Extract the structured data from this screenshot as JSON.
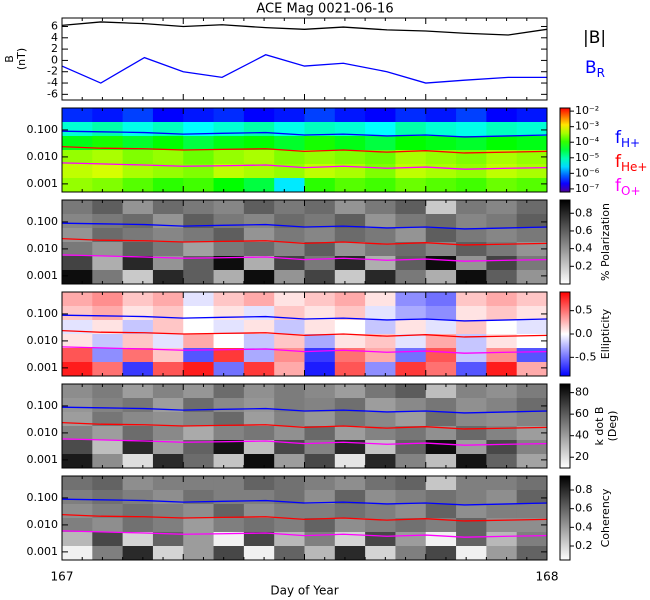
{
  "chart_data": [
    {
      "type": "line",
      "title": "ACE Mag 0021-06-16",
      "ylabel": "B",
      "ylabel_unit": "(nT)",
      "xlim": [
        167,
        168
      ],
      "ylim": [
        -7,
        7.5
      ],
      "yticks": [
        6,
        4,
        2,
        0,
        -2,
        -4,
        -6
      ],
      "x": [
        167,
        167.08,
        167.17,
        167.25,
        167.33,
        167.42,
        167.5,
        167.58,
        167.67,
        167.75,
        167.83,
        167.92,
        168
      ],
      "series": [
        {
          "name": "|B|",
          "color": "#000000",
          "values": [
            6.2,
            6.8,
            6.5,
            6.0,
            6.3,
            5.8,
            5.5,
            5.9,
            5.4,
            5.2,
            4.8,
            4.5,
            5.5
          ]
        },
        {
          "name": "B",
          "name_sub": "R",
          "color": "#0000ff",
          "values": [
            -1,
            -4,
            0.5,
            -2,
            -3,
            1,
            -1,
            -0.5,
            -2,
            -4,
            -3.5,
            -3,
            -3
          ]
        }
      ]
    },
    {
      "type": "spectrogram",
      "colormap": "rainbow",
      "ylog": true,
      "xlim": [
        167,
        168
      ],
      "ylim": [
        0.0005,
        0.65
      ],
      "yticks": [
        0.001,
        {
          "value": 0.01,
          "label": "0.010"
        },
        {
          "value": 0.1,
          "label": "0.100"
        }
      ],
      "clim": [
        -7.2,
        -1.8
      ],
      "cticks": [
        {
          "value": -2,
          "label": "10⁻²"
        },
        {
          "value": -3,
          "label": "10⁻³"
        },
        {
          "value": -4,
          "label": "10⁻⁴"
        },
        {
          "value": -5,
          "label": "10⁻⁵"
        },
        {
          "value": -6,
          "label": "10⁻⁶"
        },
        {
          "value": -7,
          "label": "10⁻⁷"
        }
      ],
      "z": [
        [
          -6.4,
          -6.5,
          -6.3,
          -6.6,
          -6.5,
          -6.4,
          -6.6,
          -6.5,
          -6.3,
          -6.5,
          -6.6,
          -6.4,
          -6.5,
          -6.3,
          -6.6,
          -6.5
        ],
        [
          -5.2,
          -5.0,
          -5.3,
          -5.1,
          -5.4,
          -5.2,
          -5.0,
          -5.3,
          -5.1,
          -5.2,
          -5.4,
          -5.0,
          -5.2,
          -5.3,
          -5.1,
          -5.2
        ],
        [
          -4.3,
          -4.1,
          -4.4,
          -4.2,
          -4.5,
          -4.3,
          -4.2,
          -4.4,
          -4.1,
          -4.3,
          -4.5,
          -4.2,
          -4.3,
          -4.4,
          -4.2,
          -4.3
        ],
        [
          -3.5,
          -3.4,
          -3.6,
          -3.5,
          -3.7,
          -3.5,
          -3.4,
          -3.6,
          -3.5,
          -3.6,
          -3.7,
          -3.4,
          -3.5,
          -3.6,
          -3.4,
          -3.5
        ],
        [
          -3.3,
          -3.2,
          -3.4,
          -3.5,
          -3.6,
          -3.3,
          -3.4,
          -3.5,
          -3.3,
          -3.4,
          -3.6,
          -3.3,
          -3.4,
          -3.5,
          -3.3,
          -3.4
        ],
        [
          -3.5,
          -3.6,
          -3.8,
          -4.0,
          -3.9,
          -4.2,
          -4.5,
          -5.5,
          -4.0,
          -3.8,
          -3.9,
          -3.7,
          -3.8,
          -3.9,
          -3.7,
          -3.8
        ]
      ],
      "x": [
        167,
        167.08,
        167.17,
        167.25,
        167.33,
        167.42,
        167.5,
        167.58,
        167.67,
        167.75,
        167.83,
        167.92,
        168
      ],
      "series": [
        {
          "name": "f",
          "name_sub": "H+",
          "color": "#0000ff",
          "values": [
            0.09,
            0.085,
            0.08,
            0.07,
            0.075,
            0.08,
            0.065,
            0.07,
            0.06,
            0.065,
            0.055,
            0.06,
            0.065
          ]
        },
        {
          "name": "f",
          "name_sub": "He+",
          "color": "#ff0000",
          "values": [
            0.024,
            0.021,
            0.02,
            0.018,
            0.019,
            0.02,
            0.016,
            0.018,
            0.015,
            0.017,
            0.014,
            0.015,
            0.016
          ]
        },
        {
          "name": "f",
          "name_sub": "O+",
          "color": "#ff00ff",
          "values": [
            0.006,
            0.0055,
            0.005,
            0.0045,
            0.0047,
            0.005,
            0.004,
            0.0045,
            0.0038,
            0.0042,
            0.0035,
            0.0038,
            0.004
          ]
        }
      ]
    },
    {
      "type": "spectrogram",
      "colormap": "gray",
      "ylog": true,
      "xlim": [
        167,
        168
      ],
      "ylim": [
        0.0005,
        0.65
      ],
      "yticks": [
        0.001,
        {
          "value": 0.01,
          "label": "0.010"
        },
        {
          "value": 0.1,
          "label": "0.100"
        }
      ],
      "clim": [
        0,
        0.95
      ],
      "clabel": "% Polarization",
      "cticks": [
        0.2,
        0.4,
        0.6,
        0.8
      ],
      "z": [
        [
          0.5,
          0.6,
          0.4,
          0.55,
          0.5,
          0.45,
          0.6,
          0.5,
          0.55,
          0.4,
          0.5,
          0.6,
          0.2,
          0.5,
          0.45,
          0.55
        ],
        [
          0.45,
          0.5,
          0.55,
          0.4,
          0.6,
          0.5,
          0.45,
          0.55,
          0.5,
          0.6,
          0.4,
          0.5,
          0.55,
          0.45,
          0.5,
          0.6
        ],
        [
          0.4,
          0.55,
          0.5,
          0.45,
          0.5,
          0.6,
          0.4,
          0.5,
          0.45,
          0.55,
          0.5,
          0.4,
          0.6,
          0.5,
          0.45,
          0.5
        ],
        [
          0.5,
          0.4,
          0.6,
          0.5,
          0.35,
          0.5,
          0.55,
          0.45,
          0.6,
          0.4,
          0.5,
          0.55,
          0.45,
          0.6,
          0.5,
          0.4
        ],
        [
          0.7,
          0.3,
          0.8,
          0.4,
          0.6,
          0.9,
          0.3,
          0.7,
          0.5,
          0.8,
          0.3,
          0.6,
          0.9,
          0.4,
          0.7,
          0.5
        ],
        [
          0.9,
          0.5,
          0.2,
          0.8,
          0.6,
          0.3,
          0.9,
          0.4,
          0.7,
          0.2,
          0.8,
          0.5,
          0.3,
          0.9,
          0.6,
          0.4
        ]
      ],
      "x": [
        167,
        167.08,
        167.17,
        167.25,
        167.33,
        167.42,
        167.5,
        167.58,
        167.67,
        167.75,
        167.83,
        167.92,
        168
      ],
      "series": [
        {
          "color": "#0000ff",
          "values": [
            0.09,
            0.085,
            0.08,
            0.07,
            0.075,
            0.08,
            0.065,
            0.07,
            0.06,
            0.065,
            0.055,
            0.06,
            0.065
          ]
        },
        {
          "color": "#ff0000",
          "values": [
            0.024,
            0.021,
            0.02,
            0.018,
            0.019,
            0.02,
            0.016,
            0.018,
            0.015,
            0.017,
            0.014,
            0.015,
            0.016
          ]
        },
        {
          "color": "#ff00ff",
          "values": [
            0.006,
            0.0055,
            0.005,
            0.0045,
            0.0047,
            0.005,
            0.004,
            0.0045,
            0.0038,
            0.0042,
            0.0035,
            0.0038,
            0.004
          ]
        }
      ]
    },
    {
      "type": "spectrogram",
      "colormap": "bwr",
      "ylog": true,
      "xlim": [
        167,
        168
      ],
      "ylim": [
        0.0005,
        0.65
      ],
      "yticks": [
        0.001,
        {
          "value": 0.01,
          "label": "0.010"
        },
        {
          "value": 0.1,
          "label": "0.100"
        }
      ],
      "clim": [
        -0.9,
        0.9
      ],
      "clabel": "Ellipticity",
      "cticks": [
        0.5,
        {
          "value": 0,
          "label": "0.0"
        },
        -0.5
      ],
      "z": [
        [
          0.3,
          0.4,
          0.2,
          0.3,
          -0.1,
          0.2,
          0.3,
          0.1,
          0.2,
          0.3,
          0.1,
          -0.4,
          -0.5,
          0.2,
          0.3,
          0.2
        ],
        [
          0.2,
          0.3,
          0.1,
          0.2,
          0.0,
          0.1,
          -0.1,
          0.2,
          0.1,
          0.2,
          -0.1,
          -0.3,
          -0.4,
          0.1,
          0.2,
          0.1
        ],
        [
          -0.1,
          0.1,
          -0.2,
          0.2,
          0.0,
          -0.1,
          0.1,
          -0.2,
          0.1,
          0.0,
          -0.2,
          0.1,
          -0.1,
          0.2,
          0.0,
          -0.1
        ],
        [
          0.1,
          -0.2,
          0.2,
          -0.1,
          0.3,
          0.0,
          -0.2,
          0.2,
          -0.3,
          0.1,
          0.2,
          -0.1,
          0.3,
          -0.2,
          0.1,
          0.0
        ],
        [
          0.6,
          -0.4,
          0.5,
          0.2,
          -0.6,
          0.7,
          -0.3,
          0.4,
          -0.7,
          0.5,
          0.3,
          -0.5,
          0.6,
          -0.2,
          0.4,
          -0.6
        ],
        [
          0.8,
          0.5,
          -0.7,
          0.6,
          0.8,
          -0.5,
          0.7,
          0.3,
          -0.8,
          0.6,
          -0.4,
          0.7,
          0.5,
          -0.6,
          0.8,
          0.3
        ]
      ],
      "x": [
        167,
        167.08,
        167.17,
        167.25,
        167.33,
        167.42,
        167.5,
        167.58,
        167.67,
        167.75,
        167.83,
        167.92,
        168
      ],
      "series": [
        {
          "color": "#0000ff",
          "values": [
            0.09,
            0.085,
            0.08,
            0.07,
            0.075,
            0.08,
            0.065,
            0.07,
            0.06,
            0.065,
            0.055,
            0.06,
            0.065
          ]
        },
        {
          "color": "#ff0000",
          "values": [
            0.024,
            0.021,
            0.02,
            0.018,
            0.019,
            0.02,
            0.016,
            0.018,
            0.015,
            0.017,
            0.014,
            0.015,
            0.016
          ]
        },
        {
          "color": "#ff00ff",
          "values": [
            0.006,
            0.0055,
            0.005,
            0.0045,
            0.0047,
            0.005,
            0.004,
            0.0045,
            0.0038,
            0.0042,
            0.0035,
            0.0038,
            0.004
          ]
        }
      ]
    },
    {
      "type": "spectrogram",
      "colormap": "gray",
      "ylog": true,
      "xlim": [
        167,
        168
      ],
      "ylim": [
        0.0005,
        0.65
      ],
      "yticks": [
        0.001,
        {
          "value": 0.01,
          "label": "0.010"
        },
        {
          "value": 0.1,
          "label": "0.100"
        }
      ],
      "clim": [
        10,
        88
      ],
      "clabel": "k dot B",
      "clabel_unit": "(Deg)",
      "cticks": [
        20,
        40,
        60,
        80
      ],
      "z": [
        [
          45,
          50,
          40,
          48,
          42,
          55,
          44,
          50,
          46,
          40,
          52,
          60,
          30,
          48,
          44,
          50
        ],
        [
          42,
          48,
          52,
          40,
          55,
          46,
          42,
          50,
          48,
          54,
          40,
          46,
          52,
          44,
          48,
          55
        ],
        [
          40,
          52,
          46,
          44,
          48,
          56,
          40,
          48,
          42,
          52,
          46,
          40,
          55,
          46,
          44,
          48
        ],
        [
          48,
          40,
          55,
          46,
          36,
          48,
          52,
          44,
          56,
          40,
          48,
          52,
          44,
          56,
          48,
          40
        ],
        [
          65,
          30,
          75,
          40,
          58,
          82,
          30,
          66,
          48,
          76,
          28,
          58,
          84,
          40,
          66,
          48
        ],
        [
          80,
          45,
          20,
          75,
          55,
          28,
          84,
          40,
          66,
          18,
          76,
          48,
          30,
          82,
          58,
          38
        ]
      ],
      "x": [
        167,
        167.08,
        167.17,
        167.25,
        167.33,
        167.42,
        167.5,
        167.58,
        167.67,
        167.75,
        167.83,
        167.92,
        168
      ],
      "series": [
        {
          "color": "#0000ff",
          "values": [
            0.09,
            0.085,
            0.08,
            0.07,
            0.075,
            0.08,
            0.065,
            0.07,
            0.06,
            0.065,
            0.055,
            0.06,
            0.065
          ]
        },
        {
          "color": "#ff0000",
          "values": [
            0.024,
            0.021,
            0.02,
            0.018,
            0.019,
            0.02,
            0.016,
            0.018,
            0.015,
            0.017,
            0.014,
            0.015,
            0.016
          ]
        },
        {
          "color": "#ff00ff",
          "values": [
            0.006,
            0.0055,
            0.005,
            0.0045,
            0.0047,
            0.005,
            0.004,
            0.0045,
            0.0038,
            0.0042,
            0.0035,
            0.0038,
            0.004
          ]
        }
      ]
    },
    {
      "type": "spectrogram",
      "colormap": "gray",
      "ylog": true,
      "xlim": [
        167,
        168
      ],
      "ylim": [
        0.0005,
        0.65
      ],
      "yticks": [
        0.001,
        {
          "value": 0.01,
          "label": "0.010"
        },
        {
          "value": 0.1,
          "label": "0.100"
        }
      ],
      "clim": [
        0.05,
        0.95
      ],
      "clabel": "Coherency",
      "cticks": [
        0.2,
        0.4,
        0.6,
        0.8
      ],
      "xticks": [
        167,
        168
      ],
      "xlabel": "Day of Year",
      "z": [
        [
          0.55,
          0.6,
          0.45,
          0.5,
          0.5,
          0.5,
          0.6,
          0.55,
          0.5,
          0.45,
          0.55,
          0.6,
          0.25,
          0.5,
          0.5,
          0.55
        ],
        [
          0.5,
          0.55,
          0.5,
          0.45,
          0.55,
          0.5,
          0.5,
          0.55,
          0.45,
          0.6,
          0.45,
          0.5,
          0.55,
          0.5,
          0.45,
          0.6
        ],
        [
          0.45,
          0.5,
          0.55,
          0.5,
          0.45,
          0.6,
          0.45,
          0.5,
          0.5,
          0.55,
          0.5,
          0.45,
          0.6,
          0.45,
          0.5,
          0.5
        ],
        [
          0.5,
          0.45,
          0.55,
          0.5,
          0.4,
          0.5,
          0.55,
          0.5,
          0.6,
          0.45,
          0.5,
          0.55,
          0.5,
          0.6,
          0.45,
          0.45
        ],
        [
          0.3,
          0.7,
          0.2,
          0.6,
          0.4,
          0.1,
          0.7,
          0.3,
          0.5,
          0.2,
          0.7,
          0.4,
          0.1,
          0.6,
          0.3,
          0.5
        ],
        [
          0.1,
          0.5,
          0.8,
          0.2,
          0.4,
          0.7,
          0.1,
          0.6,
          0.3,
          0.8,
          0.2,
          0.5,
          0.7,
          0.1,
          0.4,
          0.6
        ]
      ],
      "x": [
        167,
        167.08,
        167.17,
        167.25,
        167.33,
        167.42,
        167.5,
        167.58,
        167.67,
        167.75,
        167.83,
        167.92,
        168
      ],
      "series": [
        {
          "color": "#0000ff",
          "values": [
            0.09,
            0.085,
            0.08,
            0.07,
            0.075,
            0.08,
            0.065,
            0.07,
            0.06,
            0.065,
            0.055,
            0.06,
            0.065
          ]
        },
        {
          "color": "#ff0000",
          "values": [
            0.024,
            0.021,
            0.02,
            0.018,
            0.019,
            0.02,
            0.016,
            0.018,
            0.015,
            0.017,
            0.014,
            0.015,
            0.016
          ]
        },
        {
          "color": "#ff00ff",
          "values": [
            0.006,
            0.0055,
            0.005,
            0.0045,
            0.0047,
            0.005,
            0.004,
            0.0045,
            0.0038,
            0.0042,
            0.0035,
            0.0038,
            0.004
          ]
        }
      ]
    }
  ]
}
